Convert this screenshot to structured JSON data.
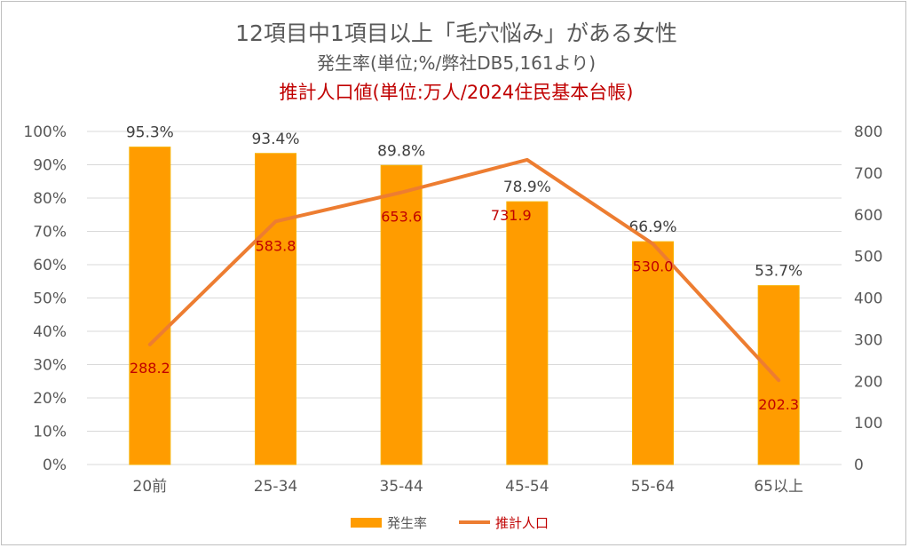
{
  "title": {
    "line1": "12項目中1項目以上「毛穴悩み」がある女性",
    "line2": "発生率(単位;%/弊社DB5,161より)",
    "line3": "推計人口値(単位:万人/2024住民基本台帳)"
  },
  "colors": {
    "bar": "#ff9c00",
    "bar_stroke": "#f7b100",
    "line": "#ed7d31",
    "line_label": "#c00000",
    "grid": "#d9d9d9",
    "axis_text": "#595959"
  },
  "legend": {
    "bar_label": "発生率",
    "line_label": "推計人口",
    "position": "bottom"
  },
  "chart_data": {
    "type": "bar+line",
    "categories": [
      "20前",
      "25-34",
      "35-44",
      "45-54",
      "55-64",
      "65以上"
    ],
    "series": [
      {
        "name": "発生率",
        "type": "bar",
        "axis": "left",
        "values": [
          95.3,
          93.4,
          89.8,
          78.9,
          66.9,
          53.7
        ],
        "labels": [
          "95.3%",
          "93.4%",
          "89.8%",
          "78.9%",
          "66.9%",
          "53.7%"
        ]
      },
      {
        "name": "推計人口",
        "type": "line",
        "axis": "right",
        "values": [
          288.2,
          583.8,
          653.6,
          731.9,
          530.0,
          202.3
        ],
        "labels": [
          "288.2",
          "583.8",
          "653.6",
          "731.9",
          "530.0",
          "202.3"
        ]
      }
    ],
    "y_left": {
      "range": [
        0,
        100
      ],
      "ticks": [
        "0%",
        "10%",
        "20%",
        "30%",
        "40%",
        "50%",
        "60%",
        "70%",
        "80%",
        "90%",
        "100%"
      ]
    },
    "y_right": {
      "range": [
        0,
        800
      ],
      "ticks": [
        "0",
        "100",
        "200",
        "300",
        "400",
        "500",
        "600",
        "700",
        "800"
      ]
    },
    "grid": true
  }
}
